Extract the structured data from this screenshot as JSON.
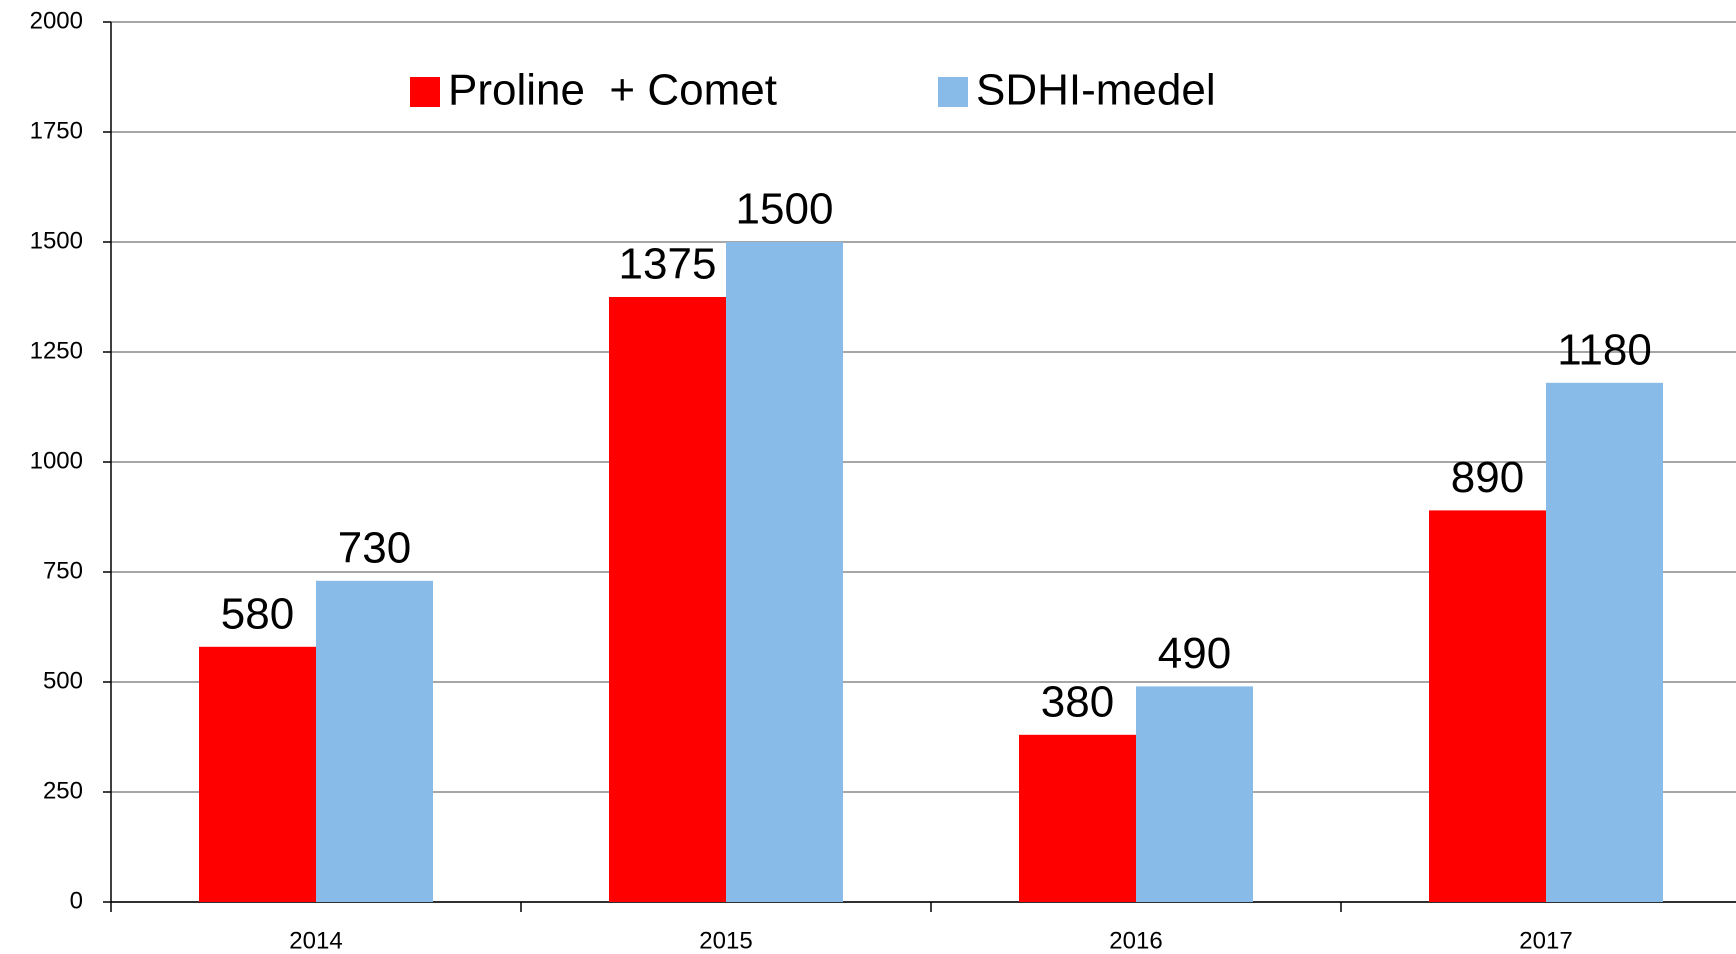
{
  "chart_data": {
    "type": "bar",
    "categories": [
      "2014",
      "2015",
      "2016",
      "2017"
    ],
    "series": [
      {
        "name": "Proline  + Comet",
        "color": "#ff0000",
        "values": [
          580,
          1375,
          380,
          890
        ]
      },
      {
        "name": "SDHI-medel",
        "color": "#88bbe8",
        "values": [
          730,
          1500,
          490,
          1180
        ]
      }
    ],
    "ylim": [
      0,
      2000
    ],
    "yticks": [
      0,
      250,
      500,
      750,
      1000,
      1250,
      1500,
      1750,
      2000
    ],
    "grid": true,
    "legend": "top"
  }
}
